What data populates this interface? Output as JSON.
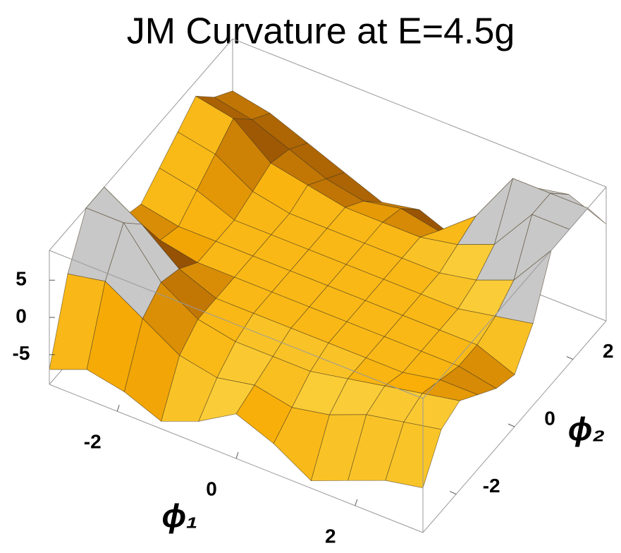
{
  "chart_data": {
    "type": "surface3d",
    "title": "JM Curvature at E=4.5g",
    "xlabel": "ϕ₁",
    "ylabel": "ϕ₂",
    "x": [
      -3.14,
      -2.51,
      -1.88,
      -1.26,
      -0.63,
      0,
      0.63,
      1.26,
      1.88,
      2.51,
      3.14
    ],
    "y": [
      -3.14,
      -2.51,
      -1.88,
      -1.26,
      -0.63,
      0,
      0.63,
      1.26,
      1.88,
      2.51,
      3.14
    ],
    "z": [
      [
        -7,
        3,
        9,
        9,
        2,
        1,
        3,
        5,
        7,
        4,
        2
      ],
      [
        -5,
        4,
        9,
        6,
        1,
        0,
        2,
        4,
        6,
        3,
        1
      ],
      [
        -6,
        1,
        3,
        2,
        0,
        0,
        0,
        1,
        2,
        1,
        -1
      ],
      [
        -8,
        -2,
        0,
        0,
        0,
        0,
        0,
        0,
        1,
        -1,
        -3
      ],
      [
        -6,
        -3,
        -1,
        0,
        0,
        0,
        0,
        0,
        0,
        -2,
        -5
      ],
      [
        -3,
        -2,
        -1,
        0,
        0,
        0,
        0,
        0,
        0,
        -1,
        -4
      ],
      [
        -5,
        -3,
        -1,
        0,
        0,
        0,
        0,
        0,
        0,
        -2,
        -6
      ],
      [
        -8,
        -2,
        0,
        0,
        0,
        0,
        0,
        0,
        1,
        2,
        -2
      ],
      [
        -6,
        0,
        1,
        0,
        0,
        0,
        0,
        1,
        3,
        9,
        5
      ],
      [
        -4,
        1,
        2,
        1,
        0,
        0,
        1,
        3,
        9,
        9,
        6
      ],
      [
        -3,
        2,
        3,
        1,
        -1,
        -2,
        2,
        9,
        9,
        9,
        4
      ]
    ],
    "xlim": [
      -3.14,
      3.14
    ],
    "ylim": [
      -3.14,
      3.14
    ],
    "zlim": [
      -9,
      9
    ],
    "xticks": [
      -2,
      0,
      2
    ],
    "yticks": [
      -2,
      0,
      2
    ],
    "zticks": [
      -5,
      0,
      5
    ],
    "color": "#f0a020",
    "clip_color": "#c8c8c8"
  }
}
